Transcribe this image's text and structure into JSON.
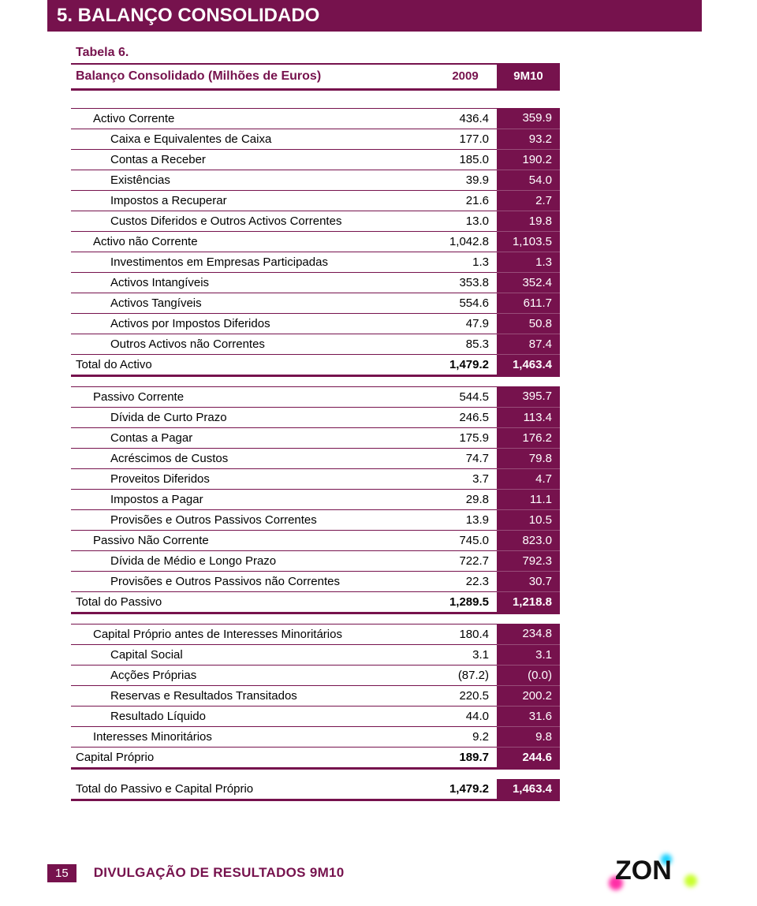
{
  "section_title": "5. BALANÇO CONSOLIDADO",
  "table_label": "Tabela 6.",
  "table_title": "Balanço Consolidado (Milhões de Euros)",
  "col1_header": "2009",
  "col2_header": "9M10",
  "rows": [
    {
      "kind": "spacer-lg"
    },
    {
      "kind": "groupstart",
      "label": "Activo Corrente",
      "indent": 1,
      "c1": "436.4",
      "c2": "359.9"
    },
    {
      "label": "Caixa e Equivalentes de Caixa",
      "indent": 2,
      "c1": "177.0",
      "c2": "93.2"
    },
    {
      "label": "Contas a Receber",
      "indent": 2,
      "c1": "185.0",
      "c2": "190.2"
    },
    {
      "label": "Existências",
      "indent": 2,
      "c1": "39.9",
      "c2": "54.0"
    },
    {
      "label": "Impostos a Recuperar",
      "indent": 2,
      "c1": "21.6",
      "c2": "2.7"
    },
    {
      "label": "Custos Diferidos e Outros Activos Correntes",
      "indent": 2,
      "c1": "13.0",
      "c2": "19.8"
    },
    {
      "label": "Activo não Corrente",
      "indent": 1,
      "c1": "1,042.8",
      "c2": "1,103.5"
    },
    {
      "label": "Investimentos em Empresas Participadas",
      "indent": 2,
      "c1": "1.3",
      "c2": "1.3"
    },
    {
      "label": "Activos Intangíveis",
      "indent": 2,
      "c1": "353.8",
      "c2": "352.4"
    },
    {
      "label": "Activos Tangíveis",
      "indent": 2,
      "c1": "554.6",
      "c2": "611.7"
    },
    {
      "label": "Activos por Impostos Diferidos",
      "indent": 2,
      "c1": "47.9",
      "c2": "50.8"
    },
    {
      "label": "Outros Activos não Correntes",
      "indent": 2,
      "c1": "85.3",
      "c2": "87.4"
    },
    {
      "kind": "total",
      "label": "Total do Activo",
      "indent": 0,
      "c1": "1,479.2",
      "c2": "1,463.4"
    },
    {
      "kind": "spacer-md"
    },
    {
      "kind": "groupstart",
      "label": "Passivo Corrente",
      "indent": 1,
      "c1": "544.5",
      "c2": "395.7"
    },
    {
      "label": "Dívida de Curto Prazo",
      "indent": 2,
      "c1": "246.5",
      "c2": "113.4"
    },
    {
      "label": "Contas a Pagar",
      "indent": 2,
      "c1": "175.9",
      "c2": "176.2"
    },
    {
      "label": "Acréscimos de Custos",
      "indent": 2,
      "c1": "74.7",
      "c2": "79.8"
    },
    {
      "label": "Proveitos Diferidos",
      "indent": 2,
      "c1": "3.7",
      "c2": "4.7"
    },
    {
      "label": "Impostos a Pagar",
      "indent": 2,
      "c1": "29.8",
      "c2": "11.1"
    },
    {
      "label": "Provisões e Outros Passivos Correntes",
      "indent": 2,
      "c1": "13.9",
      "c2": "10.5"
    },
    {
      "label": "Passivo Não Corrente",
      "indent": 1,
      "c1": "745.0",
      "c2": "823.0"
    },
    {
      "label": "Dívida de Médio e Longo Prazo",
      "indent": 2,
      "c1": "722.7",
      "c2": "792.3"
    },
    {
      "label": "Provisões e Outros Passivos não Correntes",
      "indent": 2,
      "c1": "22.3",
      "c2": "30.7"
    },
    {
      "kind": "total",
      "label": "Total do Passivo",
      "indent": 0,
      "c1": "1,289.5",
      "c2": "1,218.8"
    },
    {
      "kind": "spacer-md"
    },
    {
      "kind": "groupstart",
      "label": "Capital Próprio antes de Interesses Minoritários",
      "indent": 1,
      "c1": "180.4",
      "c2": "234.8"
    },
    {
      "label": "Capital Social",
      "indent": 2,
      "c1": "3.1",
      "c2": "3.1"
    },
    {
      "label": "Acções Próprias",
      "indent": 2,
      "c1": "(87.2)",
      "c2": "(0.0)"
    },
    {
      "label": "Reservas e Resultados Transitados",
      "indent": 2,
      "c1": "220.5",
      "c2": "200.2"
    },
    {
      "label": "Resultado Líquido",
      "indent": 2,
      "c1": "44.0",
      "c2": "31.6"
    },
    {
      "label": "Interesses Minoritários",
      "indent": 1,
      "c1": "9.2",
      "c2": "9.8"
    },
    {
      "kind": "total",
      "label": "Capital Próprio",
      "indent": 0,
      "c1": "189.7",
      "c2": "244.6"
    },
    {
      "kind": "spacer-md"
    },
    {
      "kind": "total",
      "label": "Total do Passivo e Capital Próprio",
      "indent": 0,
      "c1": "1,479.2",
      "c2": "1,463.4"
    }
  ],
  "page_number": "15",
  "footer_text": "DIVULGAÇÃO DE RESULTADOS 9M10",
  "logo_text": "ZON",
  "colors": {
    "brand": "#76124d",
    "white": "#ffffff",
    "black": "#000000"
  }
}
